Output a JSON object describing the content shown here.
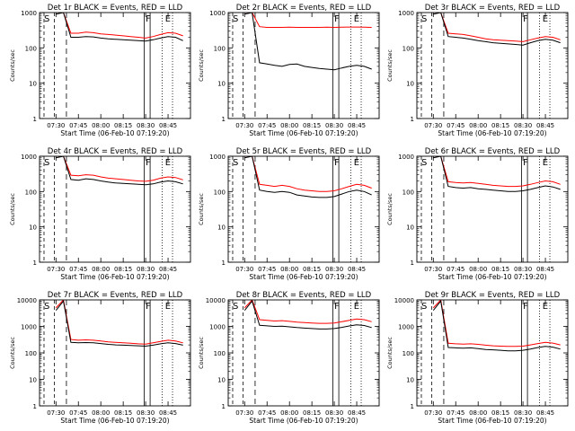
{
  "chart_data": [
    {
      "type": "line",
      "title": "Det 1r BLACK = Events, RED = LLD",
      "xlabel": "Start Time (06-Feb-10 07:19:20)",
      "ylabel": "Counts/sec",
      "x_ticks": [
        "07:30",
        "07:45",
        "08:00",
        "08:15",
        "08:30",
        "08:45"
      ],
      "y_ticks": [
        "1",
        "10",
        "100",
        "1000"
      ],
      "y_scale": "log",
      "ylim": [
        1,
        1000
      ],
      "annotations": [
        "S",
        "F",
        "E"
      ],
      "series": [
        {
          "color": "#ff0000",
          "x": [
            "07:30",
            "07:35",
            "07:40",
            "07:45",
            "07:50",
            "07:55",
            "08:00",
            "08:05",
            "08:10",
            "08:15",
            "08:20",
            "08:25",
            "08:30",
            "08:35",
            "08:40",
            "08:45",
            "08:50",
            "08:55"
          ],
          "y": [
            1000,
            1000,
            260,
            260,
            280,
            270,
            250,
            240,
            230,
            220,
            210,
            200,
            190,
            210,
            240,
            270,
            260,
            220
          ]
        },
        {
          "color": "#000000",
          "x": [
            "07:30",
            "07:35",
            "07:40",
            "07:45",
            "07:50",
            "07:55",
            "08:00",
            "08:05",
            "08:10",
            "08:15",
            "08:20",
            "08:25",
            "08:30",
            "08:35",
            "08:40",
            "08:45",
            "08:50",
            "08:55"
          ],
          "y": [
            900,
            1000,
            200,
            200,
            210,
            205,
            190,
            180,
            175,
            170,
            165,
            160,
            155,
            170,
            190,
            210,
            200,
            160
          ]
        }
      ]
    },
    {
      "type": "line",
      "title": "Det 2r BLACK = Events, RED = LLD",
      "xlabel": "Start Time (06-Feb-10 07:19:20)",
      "ylabel": "Counts/sec",
      "x_ticks": [
        "07:30",
        "07:45",
        "08:00",
        "08:15",
        "08:30",
        "08:45"
      ],
      "y_ticks": [
        "1",
        "10",
        "100",
        "1000"
      ],
      "y_scale": "log",
      "ylim": [
        1,
        1000
      ],
      "annotations": [
        "S",
        "F",
        "E"
      ],
      "series": [
        {
          "color": "#ff0000",
          "x": [
            "07:30",
            "07:35",
            "07:40",
            "07:45",
            "07:50",
            "07:55",
            "08:00",
            "08:05",
            "08:10",
            "08:15",
            "08:20",
            "08:25",
            "08:30",
            "08:35",
            "08:40",
            "08:45",
            "08:50",
            "08:55"
          ],
          "y": [
            1000,
            1000,
            400,
            380,
            380,
            380,
            385,
            380,
            380,
            380,
            380,
            385,
            380,
            385,
            390,
            390,
            385,
            380
          ]
        },
        {
          "color": "#000000",
          "x": [
            "07:30",
            "07:35",
            "07:40",
            "07:45",
            "07:50",
            "07:55",
            "08:00",
            "08:05",
            "08:10",
            "08:15",
            "08:20",
            "08:25",
            "08:30",
            "08:35",
            "08:40",
            "08:45",
            "08:50",
            "08:55"
          ],
          "y": [
            900,
            1000,
            38,
            35,
            32,
            30,
            34,
            35,
            30,
            28,
            26,
            25,
            24,
            27,
            30,
            32,
            30,
            25
          ]
        }
      ]
    },
    {
      "type": "line",
      "title": "Det 3r BLACK = Events, RED = LLD",
      "xlabel": "Start Time (06-Feb-10 07:19:20)",
      "ylabel": "Counts/sec",
      "x_ticks": [
        "07:30",
        "07:45",
        "08:00",
        "08:15",
        "08:30",
        "08:45"
      ],
      "y_ticks": [
        "1",
        "10",
        "100",
        "1000"
      ],
      "y_scale": "log",
      "ylim": [
        1,
        1000
      ],
      "annotations": [
        "S",
        "F",
        "E"
      ],
      "series": [
        {
          "color": "#ff0000",
          "x": [
            "07:30",
            "07:35",
            "07:40",
            "07:45",
            "07:50",
            "07:55",
            "08:00",
            "08:05",
            "08:10",
            "08:15",
            "08:20",
            "08:25",
            "08:30",
            "08:35",
            "08:40",
            "08:45",
            "08:50",
            "08:55"
          ],
          "y": [
            1000,
            1000,
            260,
            250,
            240,
            220,
            200,
            180,
            170,
            165,
            160,
            155,
            150,
            170,
            190,
            210,
            200,
            170
          ]
        },
        {
          "color": "#000000",
          "x": [
            "07:30",
            "07:35",
            "07:40",
            "07:45",
            "07:50",
            "07:55",
            "08:00",
            "08:05",
            "08:10",
            "08:15",
            "08:20",
            "08:25",
            "08:30",
            "08:35",
            "08:40",
            "08:45",
            "08:50",
            "08:55"
          ],
          "y": [
            900,
            1000,
            210,
            200,
            190,
            175,
            160,
            150,
            140,
            135,
            130,
            125,
            120,
            140,
            160,
            175,
            165,
            140
          ]
        }
      ]
    },
    {
      "type": "line",
      "title": "Det 4r BLACK = Events, RED = LLD",
      "xlabel": "Start Time (06-Feb-10 07:19:20)",
      "ylabel": "Counts/sec",
      "x_ticks": [
        "07:30",
        "07:45",
        "08:00",
        "08:15",
        "08:30",
        "08:45"
      ],
      "y_ticks": [
        "1",
        "10",
        "100",
        "1000"
      ],
      "y_scale": "log",
      "ylim": [
        1,
        1000
      ],
      "annotations": [
        "S",
        "F",
        "E"
      ],
      "series": [
        {
          "color": "#ff0000",
          "x": [
            "07:30",
            "07:35",
            "07:40",
            "07:45",
            "07:50",
            "07:55",
            "08:00",
            "08:05",
            "08:10",
            "08:15",
            "08:20",
            "08:25",
            "08:30",
            "08:35",
            "08:40",
            "08:45",
            "08:50",
            "08:55"
          ],
          "y": [
            1000,
            1000,
            290,
            280,
            300,
            290,
            260,
            240,
            230,
            220,
            210,
            200,
            195,
            210,
            240,
            260,
            250,
            215
          ]
        },
        {
          "color": "#000000",
          "x": [
            "07:30",
            "07:35",
            "07:40",
            "07:45",
            "07:50",
            "07:55",
            "08:00",
            "08:05",
            "08:10",
            "08:15",
            "08:20",
            "08:25",
            "08:30",
            "08:35",
            "08:40",
            "08:45",
            "08:50",
            "08:55"
          ],
          "y": [
            900,
            1000,
            220,
            210,
            230,
            220,
            200,
            185,
            175,
            170,
            165,
            160,
            155,
            165,
            185,
            200,
            190,
            165
          ]
        }
      ]
    },
    {
      "type": "line",
      "title": "Det 5r BLACK = Events, RED = LLD",
      "xlabel": "Start Time (06-Feb-10 07:19:20)",
      "ylabel": "Counts/sec",
      "x_ticks": [
        "07:30",
        "07:45",
        "08:00",
        "08:15",
        "08:30",
        "08:45"
      ],
      "y_ticks": [
        "1",
        "10",
        "100",
        "1000"
      ],
      "y_scale": "log",
      "ylim": [
        1,
        1000
      ],
      "annotations": [
        "S",
        "F",
        "E"
      ],
      "series": [
        {
          "color": "#ff0000",
          "x": [
            "07:30",
            "07:35",
            "07:40",
            "07:45",
            "07:50",
            "07:55",
            "08:00",
            "08:05",
            "08:10",
            "08:15",
            "08:20",
            "08:25",
            "08:30",
            "08:35",
            "08:40",
            "08:45",
            "08:50",
            "08:55"
          ],
          "y": [
            1000,
            1000,
            160,
            150,
            140,
            150,
            140,
            120,
            110,
            105,
            100,
            100,
            105,
            120,
            140,
            160,
            150,
            125
          ]
        },
        {
          "color": "#000000",
          "x": [
            "07:30",
            "07:35",
            "07:40",
            "07:45",
            "07:50",
            "07:55",
            "08:00",
            "08:05",
            "08:10",
            "08:15",
            "08:20",
            "08:25",
            "08:30",
            "08:35",
            "08:40",
            "08:45",
            "08:50",
            "08:55"
          ],
          "y": [
            900,
            1000,
            110,
            100,
            95,
            100,
            95,
            80,
            75,
            70,
            68,
            68,
            72,
            85,
            100,
            110,
            100,
            80
          ]
        }
      ]
    },
    {
      "type": "line",
      "title": "Det 6r BLACK = Events, RED = LLD",
      "xlabel": "Start Time (06-Feb-10 07:19:20)",
      "ylabel": "Counts/sec",
      "x_ticks": [
        "07:30",
        "07:45",
        "08:00",
        "08:15",
        "08:30",
        "08:45"
      ],
      "y_ticks": [
        "1",
        "10",
        "100",
        "1000"
      ],
      "y_scale": "log",
      "ylim": [
        1,
        1000
      ],
      "annotations": [
        "S",
        "F",
        "E"
      ],
      "series": [
        {
          "color": "#ff0000",
          "x": [
            "07:30",
            "07:35",
            "07:40",
            "07:45",
            "07:50",
            "07:55",
            "08:00",
            "08:05",
            "08:10",
            "08:15",
            "08:20",
            "08:25",
            "08:30",
            "08:35",
            "08:40",
            "08:45",
            "08:50",
            "08:55"
          ],
          "y": [
            1000,
            1000,
            190,
            180,
            175,
            180,
            170,
            160,
            150,
            145,
            140,
            140,
            145,
            160,
            180,
            200,
            190,
            160
          ]
        },
        {
          "color": "#000000",
          "x": [
            "07:30",
            "07:35",
            "07:40",
            "07:45",
            "07:50",
            "07:55",
            "08:00",
            "08:05",
            "08:10",
            "08:15",
            "08:20",
            "08:25",
            "08:30",
            "08:35",
            "08:40",
            "08:45",
            "08:50",
            "08:55"
          ],
          "y": [
            900,
            1000,
            140,
            130,
            125,
            130,
            120,
            115,
            110,
            105,
            100,
            100,
            105,
            115,
            130,
            145,
            135,
            115
          ]
        }
      ]
    },
    {
      "type": "line",
      "title": "Det 7r BLACK = Events, RED = LLD",
      "xlabel": "Start Time (06-Feb-10 07:19:20)",
      "ylabel": "Counts/sec",
      "x_ticks": [
        "07:30",
        "07:45",
        "08:00",
        "08:15",
        "08:30",
        "08:45"
      ],
      "y_ticks": [
        "1",
        "10",
        "100",
        "1000",
        "10000"
      ],
      "y_scale": "log",
      "ylim": [
        1,
        10000
      ],
      "annotations": [
        "S",
        "F",
        "E"
      ],
      "series": [
        {
          "color": "#ff0000",
          "x": [
            "07:30",
            "07:35",
            "07:40",
            "07:45",
            "07:50",
            "07:55",
            "08:00",
            "08:05",
            "08:10",
            "08:15",
            "08:20",
            "08:25",
            "08:30",
            "08:35",
            "08:40",
            "08:45",
            "08:50",
            "08:55"
          ],
          "y": [
            5000,
            10000,
            320,
            300,
            310,
            300,
            280,
            260,
            250,
            240,
            230,
            220,
            215,
            240,
            270,
            300,
            280,
            240
          ]
        },
        {
          "color": "#000000",
          "x": [
            "07:30",
            "07:35",
            "07:40",
            "07:45",
            "07:50",
            "07:55",
            "08:00",
            "08:05",
            "08:10",
            "08:15",
            "08:20",
            "08:25",
            "08:30",
            "08:35",
            "08:40",
            "08:45",
            "08:50",
            "08:55"
          ],
          "y": [
            4000,
            9000,
            250,
            240,
            245,
            240,
            225,
            210,
            200,
            195,
            190,
            185,
            180,
            195,
            220,
            240,
            225,
            195
          ]
        }
      ]
    },
    {
      "type": "line",
      "title": "Det 8r BLACK = Events, RED = LLD",
      "xlabel": "Start Time (06-Feb-10 07:19:20)",
      "ylabel": "Counts/sec",
      "x_ticks": [
        "07:30",
        "07:45",
        "08:00",
        "08:15",
        "08:30",
        "08:45"
      ],
      "y_ticks": [
        "1",
        "10",
        "100",
        "1000",
        "10000"
      ],
      "y_scale": "log",
      "ylim": [
        1,
        10000
      ],
      "annotations": [
        "S",
        "F",
        "E"
      ],
      "series": [
        {
          "color": "#ff0000",
          "x": [
            "07:30",
            "07:35",
            "07:40",
            "07:45",
            "07:50",
            "07:55",
            "08:00",
            "08:05",
            "08:10",
            "08:15",
            "08:20",
            "08:25",
            "08:30",
            "08:35",
            "08:40",
            "08:45",
            "08:50",
            "08:55"
          ],
          "y": [
            5000,
            10000,
            1800,
            1700,
            1600,
            1650,
            1550,
            1450,
            1400,
            1350,
            1300,
            1300,
            1350,
            1500,
            1700,
            1900,
            1800,
            1500
          ]
        },
        {
          "color": "#000000",
          "x": [
            "07:30",
            "07:35",
            "07:40",
            "07:45",
            "07:50",
            "07:55",
            "08:00",
            "08:05",
            "08:10",
            "08:15",
            "08:20",
            "08:25",
            "08:30",
            "08:35",
            "08:40",
            "08:45",
            "08:50",
            "08:55"
          ],
          "y": [
            4000,
            9000,
            1100,
            1050,
            1000,
            1020,
            960,
            900,
            860,
            830,
            800,
            800,
            830,
            920,
            1040,
            1150,
            1080,
            900
          ]
        }
      ]
    },
    {
      "type": "line",
      "title": "Det 9r BLACK = Events, RED = LLD",
      "xlabel": "Start Time (06-Feb-10 07:19:20)",
      "ylabel": "Counts/sec",
      "x_ticks": [
        "07:30",
        "07:45",
        "08:00",
        "08:15",
        "08:30",
        "08:45"
      ],
      "y_ticks": [
        "1",
        "10",
        "100",
        "1000",
        "10000"
      ],
      "y_scale": "log",
      "ylim": [
        1,
        10000
      ],
      "annotations": [
        "S",
        "F",
        "E"
      ],
      "series": [
        {
          "color": "#ff0000",
          "x": [
            "07:30",
            "07:35",
            "07:40",
            "07:45",
            "07:50",
            "07:55",
            "08:00",
            "08:05",
            "08:10",
            "08:15",
            "08:20",
            "08:25",
            "08:30",
            "08:35",
            "08:40",
            "08:45",
            "08:50",
            "08:55"
          ],
          "y": [
            5000,
            10000,
            230,
            220,
            215,
            220,
            210,
            195,
            185,
            180,
            175,
            175,
            180,
            200,
            225,
            250,
            235,
            200
          ]
        },
        {
          "color": "#000000",
          "x": [
            "07:30",
            "07:35",
            "07:40",
            "07:45",
            "07:50",
            "07:55",
            "08:00",
            "08:05",
            "08:10",
            "08:15",
            "08:20",
            "08:25",
            "08:30",
            "08:35",
            "08:40",
            "08:45",
            "08:50",
            "08:55"
          ],
          "y": [
            4000,
            9000,
            160,
            155,
            150,
            155,
            145,
            135,
            130,
            125,
            120,
            120,
            125,
            140,
            160,
            175,
            165,
            140
          ]
        }
      ]
    }
  ]
}
